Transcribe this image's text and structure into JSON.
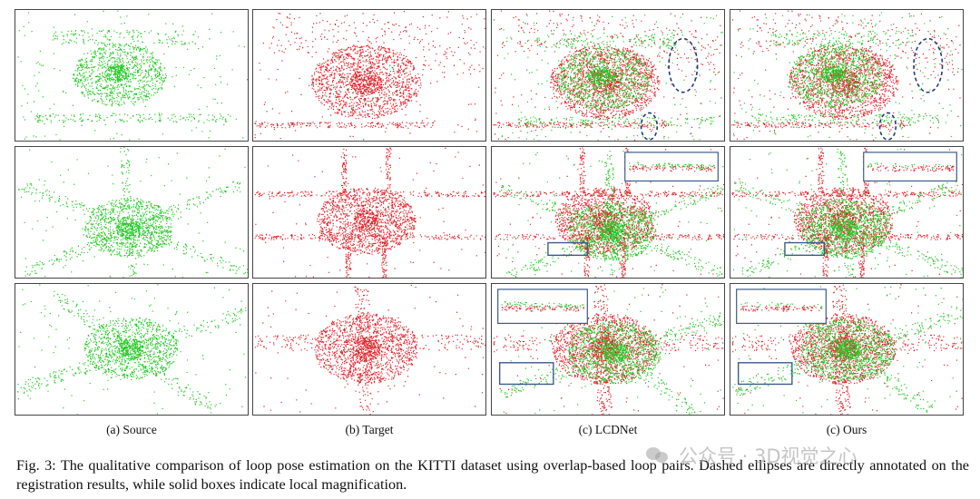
{
  "columns": [
    {
      "label": "(a) Source"
    },
    {
      "label": "(b) Target"
    },
    {
      "label": "(c) LCDNet"
    },
    {
      "label": "(c) Ours"
    }
  ],
  "rows": 3,
  "colors": {
    "source": "#22c922",
    "target": "#e0242b",
    "ellipse": "#1e3a7a",
    "box": "#3a5a8c"
  },
  "caption": "Fig. 3: The qualitative comparison of loop pose estimation on the KITTI dataset using overlap-based loop pairs. Dashed ellipses are directly annotated on the registration results, while solid boxes indicate local magnification.",
  "watermark": {
    "text": "公众号 · 3D视觉之心",
    "icon": "wechat-icon"
  }
}
